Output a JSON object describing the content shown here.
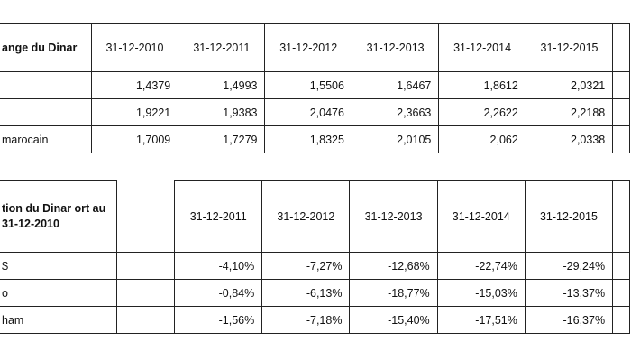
{
  "table1": {
    "corner_label": "ange du Dinar",
    "dates": [
      "31-12-2010",
      "31-12-2011",
      "31-12-2012",
      "31-12-2013",
      "31-12-2014",
      "31-12-2015"
    ],
    "rows": [
      {
        "label": "",
        "values": [
          "1,4379",
          "1,4993",
          "1,5506",
          "1,6467",
          "1,8612",
          "2,0321"
        ]
      },
      {
        "label": "",
        "values": [
          "1,9221",
          "1,9383",
          "2,0476",
          "2,3663",
          "2,2622",
          "2,2188"
        ]
      },
      {
        "label": "marocain",
        "values": [
          "1,7009",
          "1,7279",
          "1,8325",
          "2,0105",
          "2,062",
          "2,0338"
        ]
      }
    ]
  },
  "table2": {
    "corner_label": "tion du Dinar ort au 31-12-2010",
    "dates": [
      "31-12-2011",
      "31-12-2012",
      "31-12-2013",
      "31-12-2014",
      "31-12-2015"
    ],
    "rows": [
      {
        "label": "$",
        "values": [
          "-4,10%",
          "-7,27%",
          "-12,68%",
          "-22,74%",
          "-29,24%"
        ]
      },
      {
        "label": "o",
        "values": [
          "-0,84%",
          "-6,13%",
          "-18,77%",
          "-15,03%",
          "-13,37%"
        ]
      },
      {
        "label": "ham",
        "values": [
          "-1,56%",
          "-7,18%",
          "-15,40%",
          "-17,51%",
          "-16,37%"
        ]
      }
    ]
  }
}
